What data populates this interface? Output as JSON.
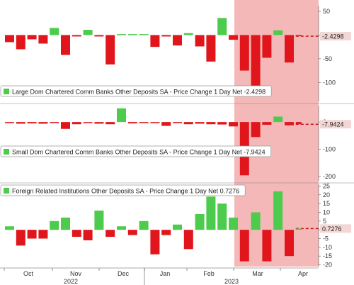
{
  "colors": {
    "positive": "#4CCB4C",
    "negative": "#E0161C",
    "highlight": "#F4B8B8",
    "last_label_bg": "#F2D7D5",
    "grid": "#CCCCCC",
    "dashed": "#C41018",
    "axis": "#555555"
  },
  "x_axis": {
    "months": [
      "Oct",
      "Nov",
      "Dec",
      "Jan",
      "Feb",
      "Mar",
      "Apr"
    ],
    "years": [
      "2022",
      "2023"
    ]
  },
  "chart_data": [
    {
      "type": "bar",
      "legend": "Large Dom Chartered Comm Banks Other Deposits SA - Price Change 1 Day Net -2.4298",
      "last_value_label": "-2.4298",
      "last_value": -2.4298,
      "ylim": [
        -140,
        62
      ],
      "yticks": [
        50,
        0,
        -50,
        -100
      ],
      "values": [
        -15,
        -30,
        -9,
        -18,
        15,
        -42,
        -3,
        11,
        -3,
        -62,
        2,
        2,
        2,
        -25,
        -3,
        -22,
        4,
        -24,
        -56,
        36,
        -10,
        -75,
        -126,
        -48,
        10,
        -58,
        -2.43
      ]
    },
    {
      "type": "bar",
      "legend": "Small Dom Chartered Comm Banks Other Deposits SA - Price Change 1 Day Net -7.9424",
      "last_value_label": "-7.9424",
      "last_value": -7.9424,
      "ylim": [
        -215,
        60
      ],
      "yticks": [
        0,
        -100,
        -200
      ],
      "values": [
        -4,
        -6,
        -5,
        -6,
        -2,
        -25,
        -8,
        -3,
        -6,
        -8,
        50,
        -5,
        -2,
        -4,
        -14,
        -4,
        -8,
        -6,
        -8,
        -9,
        -16,
        -195,
        -55,
        -10,
        20,
        -12,
        -7.94
      ]
    },
    {
      "type": "bar",
      "legend": "Foreign Related Institutions Other Deposits SA - Price Change 1 Day Net 0.7276",
      "last_value_label": "0.7276",
      "last_value": 0.7276,
      "ylim": [
        -21,
        26
      ],
      "yticks": [
        25,
        20,
        15,
        10,
        5,
        0,
        -5,
        -10,
        -15,
        -20
      ],
      "values": [
        2,
        -9,
        -5,
        -5,
        5,
        7,
        -4,
        -6,
        11,
        -4,
        2,
        -3,
        5,
        -14,
        -3,
        3,
        -11,
        9,
        19,
        15,
        7,
        -18,
        10,
        -18,
        22,
        -15,
        0.73
      ]
    }
  ]
}
